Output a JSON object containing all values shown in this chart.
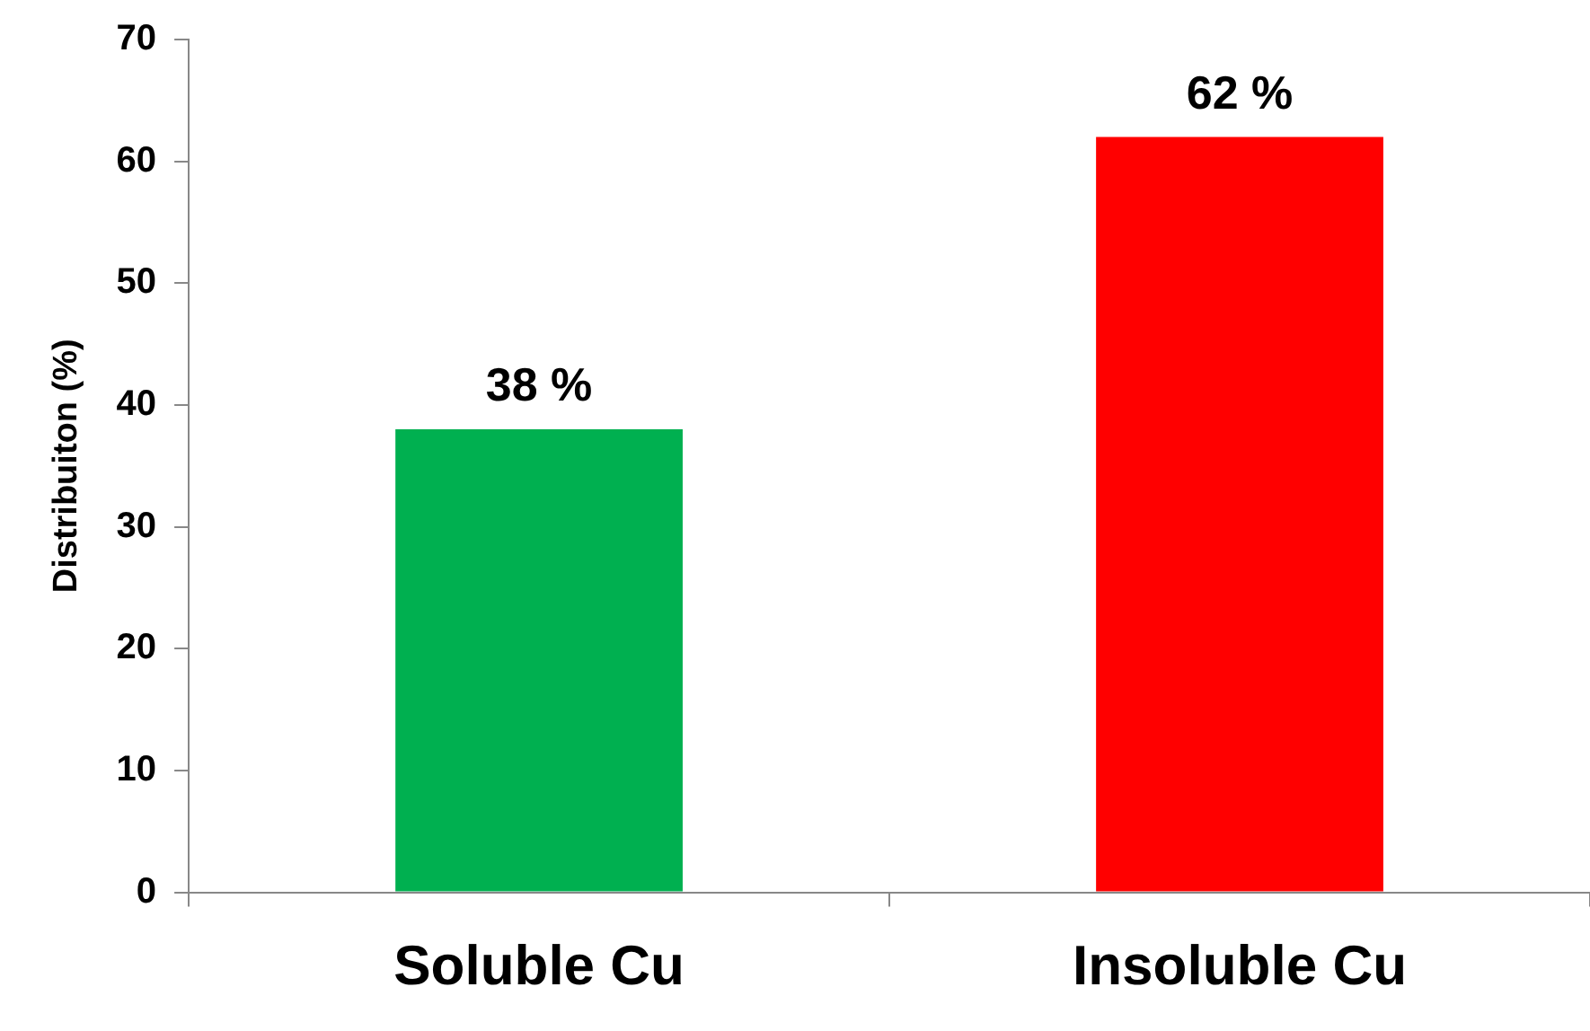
{
  "chart_data": {
    "type": "bar",
    "ylabel": "Distribuiton (%)",
    "categories": [
      "Soluble Cu",
      "Insoluble Cu"
    ],
    "values": [
      38,
      62
    ],
    "colors": [
      "#00b050",
      "#ff0000"
    ],
    "value_labels": [
      "38 %",
      "62 %"
    ],
    "ylim": [
      0,
      70
    ],
    "yticks": [
      0,
      10,
      20,
      30,
      40,
      50,
      60,
      70
    ],
    "grid": false,
    "legend": false
  }
}
